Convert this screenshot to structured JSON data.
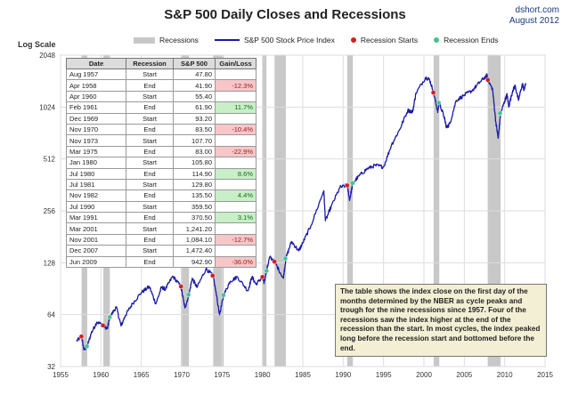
{
  "title": "S&P 500 Daily Closes and Recessions",
  "credit": {
    "site": "dshort.com",
    "date": "August 2012"
  },
  "scale_label": "Log Scale",
  "legend": {
    "recessions": "Recessions",
    "index": "S&P 500 Stock Price Index",
    "starts": "Recession Starts",
    "ends": "Recession Ends"
  },
  "colors": {
    "recession": "#c8c8c8",
    "line": "#1a1aa8",
    "start": "#d42020",
    "end": "#3ec58c"
  },
  "table": {
    "headers": [
      "Date",
      "Recession",
      "S&P 500",
      "Gain/Loss"
    ],
    "rows": [
      {
        "date": "Aug 1957",
        "rec": "Start",
        "sp": "47.80",
        "gain": ""
      },
      {
        "date": "Apr 1958",
        "rec": "End",
        "sp": "41.90",
        "gain": "-12.3%"
      },
      {
        "date": "Apr 1960",
        "rec": "Start",
        "sp": "55.40",
        "gain": ""
      },
      {
        "date": "Feb 1961",
        "rec": "End",
        "sp": "61.90",
        "gain": "11.7%"
      },
      {
        "date": "Dec 1969",
        "rec": "Start",
        "sp": "93.20",
        "gain": ""
      },
      {
        "date": "Nov 1970",
        "rec": "End",
        "sp": "83.50",
        "gain": "-10.4%"
      },
      {
        "date": "Nov 1973",
        "rec": "Start",
        "sp": "107.70",
        "gain": ""
      },
      {
        "date": "Mar 1975",
        "rec": "End",
        "sp": "83.00",
        "gain": "-22.9%"
      },
      {
        "date": "Jan 1980",
        "rec": "Start",
        "sp": "105.80",
        "gain": ""
      },
      {
        "date": "Jul 1980",
        "rec": "End",
        "sp": "114.90",
        "gain": "8.6%"
      },
      {
        "date": "Jul 1981",
        "rec": "Start",
        "sp": "129.80",
        "gain": ""
      },
      {
        "date": "Nov 1982",
        "rec": "End",
        "sp": "135.50",
        "gain": "4.4%"
      },
      {
        "date": "Jul 1990",
        "rec": "Start",
        "sp": "359.50",
        "gain": ""
      },
      {
        "date": "Mar 1991",
        "rec": "End",
        "sp": "370.50",
        "gain": "3.1%"
      },
      {
        "date": "Mar 2001",
        "rec": "Start",
        "sp": "1,241.20",
        "gain": ""
      },
      {
        "date": "Nov 2001",
        "rec": "End",
        "sp": "1,084.10",
        "gain": "-12.7%"
      },
      {
        "date": "Dec 2007",
        "rec": "Start",
        "sp": "1,472.40",
        "gain": ""
      },
      {
        "date": "Jun 2009",
        "rec": "End",
        "sp": "942.90",
        "gain": "-36.0%"
      }
    ]
  },
  "note": "The table shows the index close on the first day of the months determined by the NBER as cycle peaks and trough for the nine recessions since 1957. Four of the recessions saw the index higher at the end of the recession than the start. In most cycles, the index peaked long before the recession start and bottomed before the end.",
  "chart_data": {
    "type": "line",
    "title": "S&P 500 Daily Closes and Recessions",
    "ylabel": "Log Scale",
    "y_scale": "log2",
    "ylim": [
      32,
      2048
    ],
    "xlim": [
      1955,
      2015
    ],
    "grid": true,
    "legend_position": "top",
    "x_ticks": [
      "1955",
      "1960",
      "1965",
      "1970",
      "1975",
      "1980",
      "1985",
      "1990",
      "1995",
      "2000",
      "2005",
      "2010",
      "2015"
    ],
    "y_ticks": [
      "32",
      "64",
      "128",
      "256",
      "512",
      "1024",
      "2048"
    ],
    "recessions": [
      [
        1957.6,
        1958.3
      ],
      [
        1960.3,
        1961.1
      ],
      [
        1969.9,
        1970.9
      ],
      [
        1973.9,
        1975.2
      ],
      [
        1980.0,
        1980.5
      ],
      [
        1981.5,
        1982.9
      ],
      [
        1990.5,
        1991.2
      ],
      [
        2001.2,
        2001.9
      ],
      [
        2007.9,
        2009.5
      ]
    ],
    "series": [
      {
        "values": [
          [
            1957.0,
            45
          ],
          [
            1957.6,
            47.8
          ],
          [
            1957.9,
            40
          ],
          [
            1958.3,
            41.9
          ],
          [
            1958.8,
            50
          ],
          [
            1959.5,
            58
          ],
          [
            1960.3,
            55.4
          ],
          [
            1960.8,
            53
          ],
          [
            1961.1,
            61.9
          ],
          [
            1961.9,
            71
          ],
          [
            1962.5,
            55
          ],
          [
            1963.0,
            63
          ],
          [
            1963.9,
            74
          ],
          [
            1965.0,
            86
          ],
          [
            1966.0,
            93
          ],
          [
            1966.8,
            74
          ],
          [
            1967.5,
            92
          ],
          [
            1968.0,
            90
          ],
          [
            1968.9,
            107
          ],
          [
            1969.9,
            93.2
          ],
          [
            1970.4,
            70
          ],
          [
            1970.9,
            83.5
          ],
          [
            1971.3,
            104
          ],
          [
            1971.9,
            92
          ],
          [
            1973.0,
            118
          ],
          [
            1973.9,
            107.7
          ],
          [
            1974.7,
            64
          ],
          [
            1975.2,
            83
          ],
          [
            1976.0,
            100
          ],
          [
            1976.9,
            106
          ],
          [
            1978.2,
            88
          ],
          [
            1978.7,
            106
          ],
          [
            1979.2,
            96
          ],
          [
            1980.0,
            105.8
          ],
          [
            1980.2,
            98
          ],
          [
            1980.5,
            114.9
          ],
          [
            1980.9,
            138
          ],
          [
            1981.5,
            129.8
          ],
          [
            1982.6,
            104
          ],
          [
            1982.9,
            135.5
          ],
          [
            1983.6,
            170
          ],
          [
            1984.5,
            150
          ],
          [
            1985.0,
            167
          ],
          [
            1986.0,
            210
          ],
          [
            1987.6,
            335
          ],
          [
            1987.8,
            224
          ],
          [
            1988.5,
            270
          ],
          [
            1989.6,
            350
          ],
          [
            1990.5,
            359.5
          ],
          [
            1990.8,
            296
          ],
          [
            1991.2,
            370.5
          ],
          [
            1992.0,
            410
          ],
          [
            1993.0,
            450
          ],
          [
            1994.0,
            470
          ],
          [
            1995.0,
            460
          ],
          [
            1996.0,
            620
          ],
          [
            1997.0,
            760
          ],
          [
            1998.0,
            980
          ],
          [
            1998.6,
            960
          ],
          [
            1999.0,
            1230
          ],
          [
            2000.2,
            1520
          ],
          [
            2000.7,
            1480
          ],
          [
            2001.2,
            1241.2
          ],
          [
            2001.7,
            965
          ],
          [
            2001.9,
            1084.1
          ],
          [
            2002.5,
            900
          ],
          [
            2002.8,
            776
          ],
          [
            2003.2,
            820
          ],
          [
            2004.0,
            1120
          ],
          [
            2005.0,
            1200
          ],
          [
            2006.0,
            1280
          ],
          [
            2007.0,
            1440
          ],
          [
            2007.8,
            1565
          ],
          [
            2007.9,
            1472.4
          ],
          [
            2008.5,
            1300
          ],
          [
            2008.9,
            840
          ],
          [
            2009.2,
            676
          ],
          [
            2009.5,
            942.9
          ],
          [
            2010.0,
            1110
          ],
          [
            2010.3,
            1210
          ],
          [
            2010.5,
            1030
          ],
          [
            2011.0,
            1280
          ],
          [
            2011.3,
            1360
          ],
          [
            2011.7,
            1120
          ],
          [
            2012.2,
            1400
          ],
          [
            2012.4,
            1280
          ],
          [
            2012.6,
            1410
          ]
        ]
      }
    ]
  }
}
